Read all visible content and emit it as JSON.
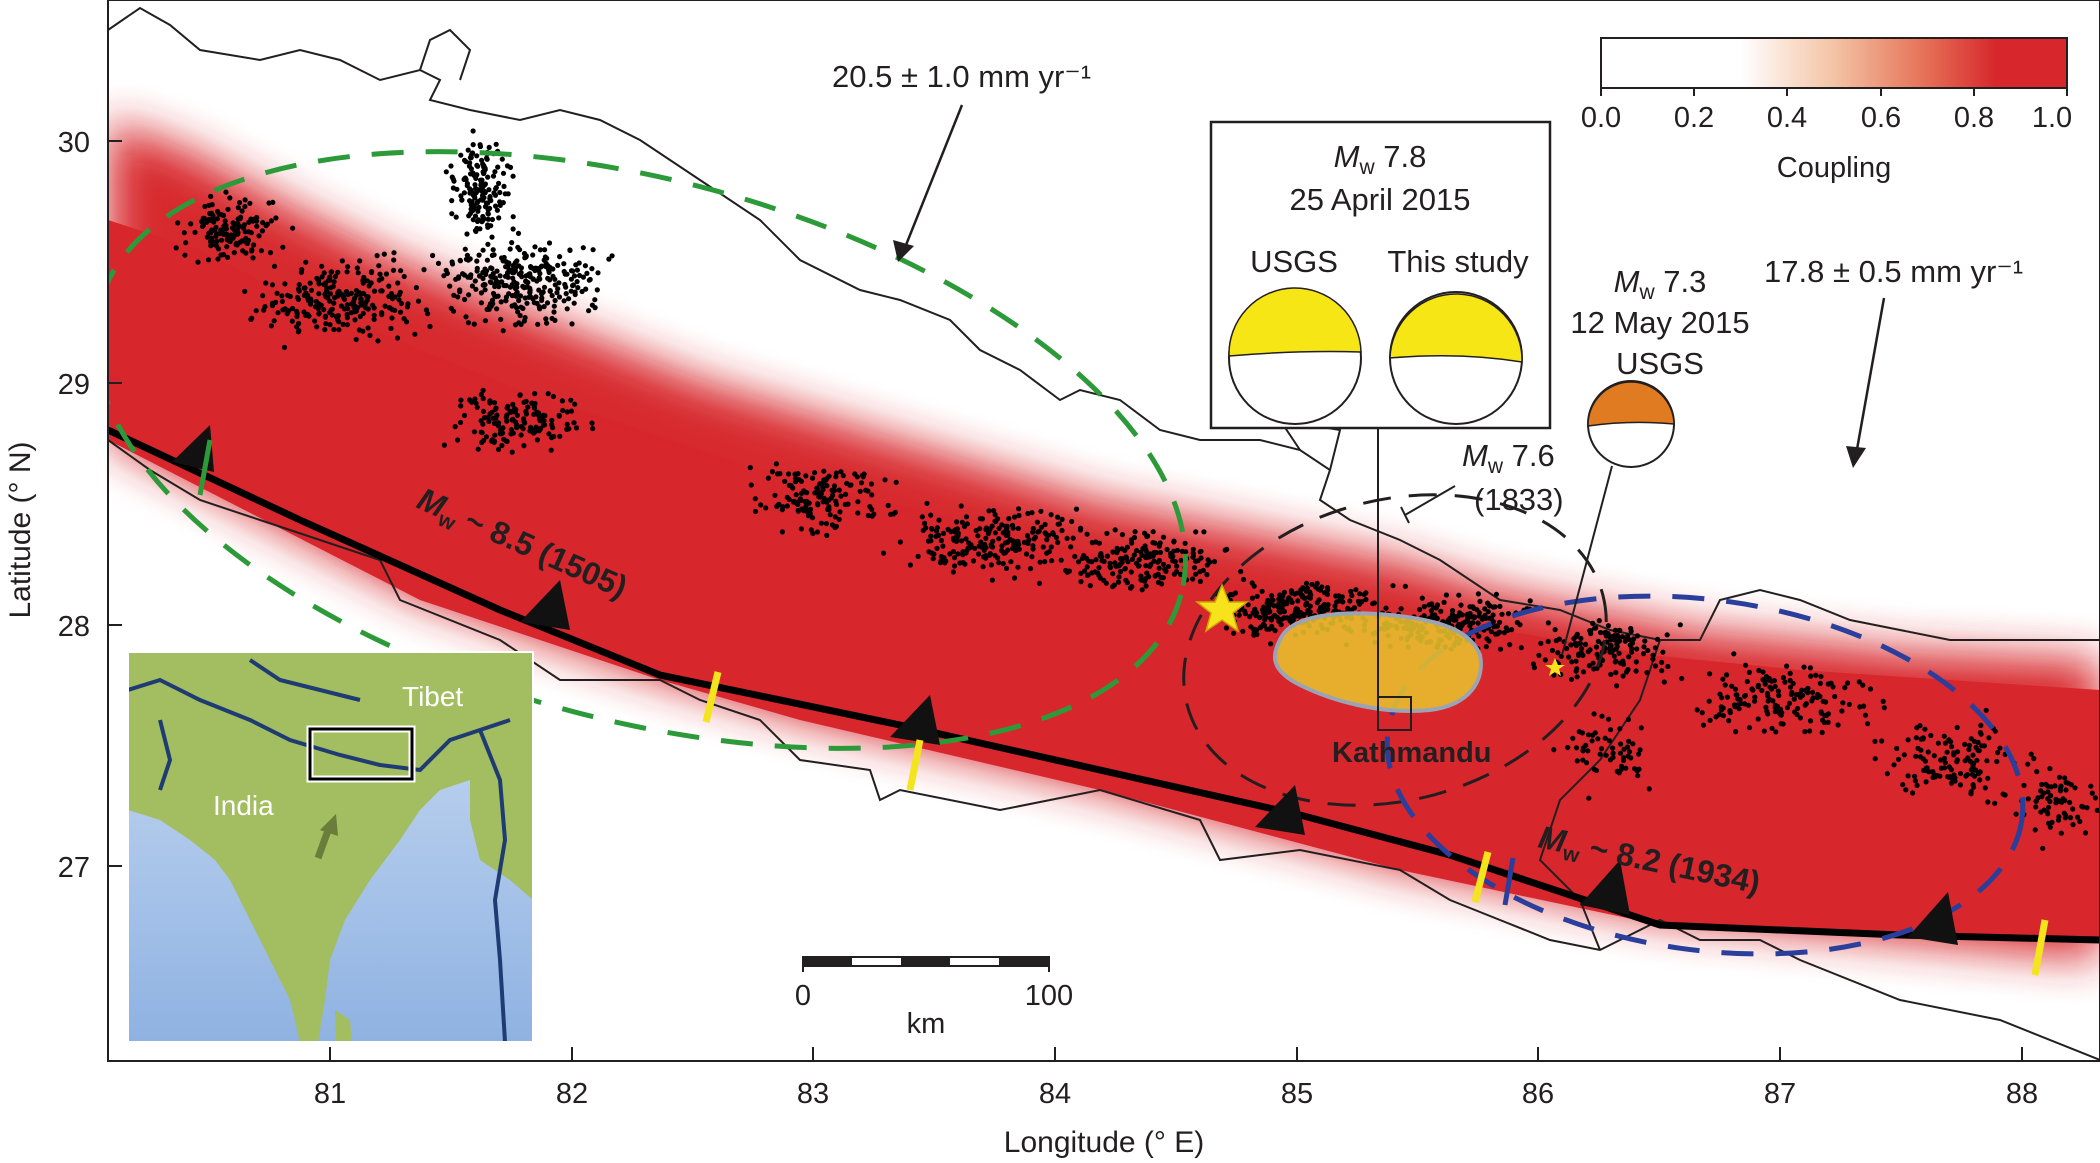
{
  "figure": {
    "axes": {
      "xlabel": "Longitude (° E)",
      "ylabel": "Latitude (° N)",
      "x_ticks": [
        "81",
        "82",
        "83",
        "84",
        "85",
        "86",
        "87",
        "88"
      ],
      "y_ticks": [
        "30",
        "29",
        "28",
        "27"
      ],
      "xlim": [
        80.1,
        88.3
      ],
      "ylim": [
        26.2,
        30.6
      ]
    },
    "colorbar": {
      "title": "Coupling",
      "ticks": [
        "0.0",
        "0.2",
        "0.4",
        "0.6",
        "0.8",
        "1.0"
      ],
      "range": [
        0.0,
        1.0
      ],
      "colors": [
        "#ffffff",
        "#f2b08c",
        "#d7262c"
      ]
    },
    "velocities": {
      "west": "20.5 ± 1.0 mm yr⁻¹",
      "east": "17.8 ± 0.5 mm yr⁻¹"
    },
    "main_event": {
      "mag_prefix": "M",
      "mag_sub": "w",
      "mag_value": " 7.8",
      "date": "25 April 2015",
      "label_usgs": "USGS",
      "label_study": "This study"
    },
    "aftershock_event": {
      "mag_prefix": "M",
      "mag_sub": "w",
      "mag_value": " 7.3",
      "date": "12 May 2015",
      "source": "USGS"
    },
    "event_1833": {
      "mag_prefix": "M",
      "mag_sub": "w",
      "mag_value": " 7.6",
      "year": "(1833)"
    },
    "event_1505": {
      "mag_prefix": "M",
      "mag_sub": "w",
      "mag_value": " ~ 8.5 (1505)"
    },
    "event_1934": {
      "mag_prefix": "M",
      "mag_sub": "w",
      "mag_value": " ~ 8.2 (1934)"
    },
    "city": "Kathmandu",
    "scale_bar": {
      "label_start": "0",
      "label_end": "100",
      "unit": "km"
    },
    "inset": {
      "label_tibet": "Tibet",
      "label_india": "India"
    },
    "colors": {
      "coupling_high": "#d7262c",
      "rupture_fill": "#e8c22c",
      "epicenter_star": "#f7e21b",
      "ellipse_1505": "#2d9a3a",
      "ellipse_1934": "#2a3e9b",
      "ellipse_1833": "#231f20",
      "segment_marker": "#f3e41d",
      "mechanism_yellow": "#f7e616",
      "mechanism_orange": "#e07b22",
      "inset_land": "#a3bd61",
      "inset_sea": "#aac7ea"
    }
  }
}
